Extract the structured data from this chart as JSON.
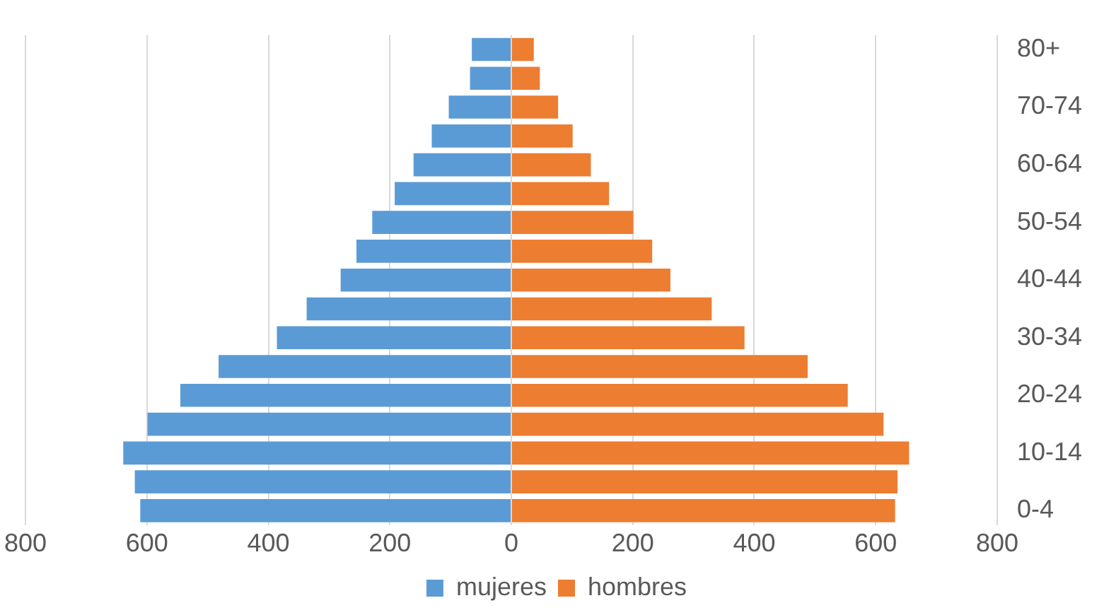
{
  "chart_data": {
    "type": "bar",
    "orientation": "horizontal",
    "stacked": true,
    "categories": [
      "80+",
      null,
      "70-74",
      null,
      "60-64",
      null,
      "50-54",
      null,
      "40-44",
      null,
      "30-34",
      null,
      "20-24",
      null,
      "10-14",
      null,
      "0-4"
    ],
    "series": [
      {
        "name": "mujeres",
        "color": "#5b9bd5",
        "values": [
          -65,
          -68,
          -103,
          -131,
          -161,
          -192,
          -229,
          -255,
          -281,
          -337,
          -386,
          -482,
          -545,
          -599,
          -639,
          -620,
          -611
        ]
      },
      {
        "name": "hombres",
        "color": "#ed7d31",
        "values": [
          37,
          47,
          77,
          101,
          131,
          161,
          201,
          232,
          262,
          330,
          384,
          488,
          554,
          613,
          655,
          636,
          632
        ]
      }
    ],
    "xlim": [
      -800,
      800
    ],
    "xticks": [
      {
        "value": -800,
        "label": "800"
      },
      {
        "value": -600,
        "label": "600"
      },
      {
        "value": -400,
        "label": "400"
      },
      {
        "value": -200,
        "label": "200"
      },
      0,
      200,
      400,
      600,
      800
    ],
    "grid": "x",
    "legend": "bottom"
  }
}
